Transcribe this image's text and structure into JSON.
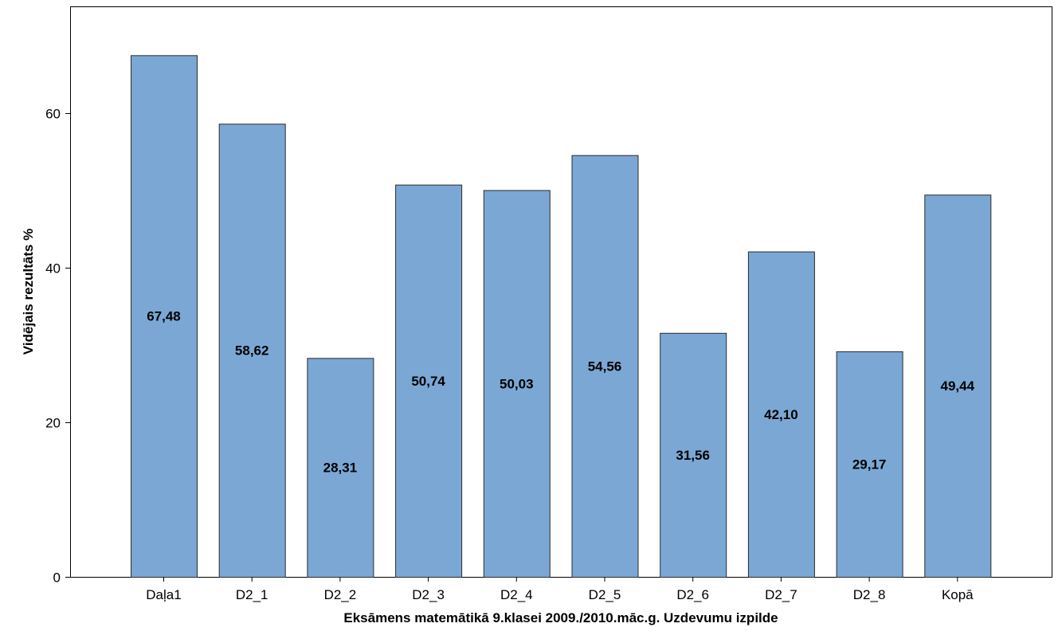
{
  "chart_data": {
    "type": "bar",
    "categories": [
      "Daļa1",
      "D2_1",
      "D2_2",
      "D2_3",
      "D2_4",
      "D2_5",
      "D2_6",
      "D2_7",
      "D2_8",
      "Kopā"
    ],
    "values": [
      67.48,
      58.62,
      28.31,
      50.74,
      50.03,
      54.56,
      31.56,
      42.1,
      29.17,
      49.44
    ],
    "data_labels": [
      "67,48",
      "58,62",
      "28,31",
      "50,74",
      "50,03",
      "54,56",
      "31,56",
      "42,10",
      "29,17",
      "49,44"
    ],
    "xlabel": "Eksāmens matemātikā 9.klasei 2009./2010.māc.g. Uzdevumu izpilde",
    "ylabel": "Vidējais rezultāts %",
    "ylim": [
      0,
      73.8
    ],
    "yticks": [
      0,
      20,
      40,
      60
    ],
    "ytick_labels": [
      "0",
      "20",
      "40",
      "60"
    ],
    "grid": false,
    "legend": "none",
    "bar_color": "#7ba7d4",
    "bar_edge_color": "#2b2b2b"
  }
}
